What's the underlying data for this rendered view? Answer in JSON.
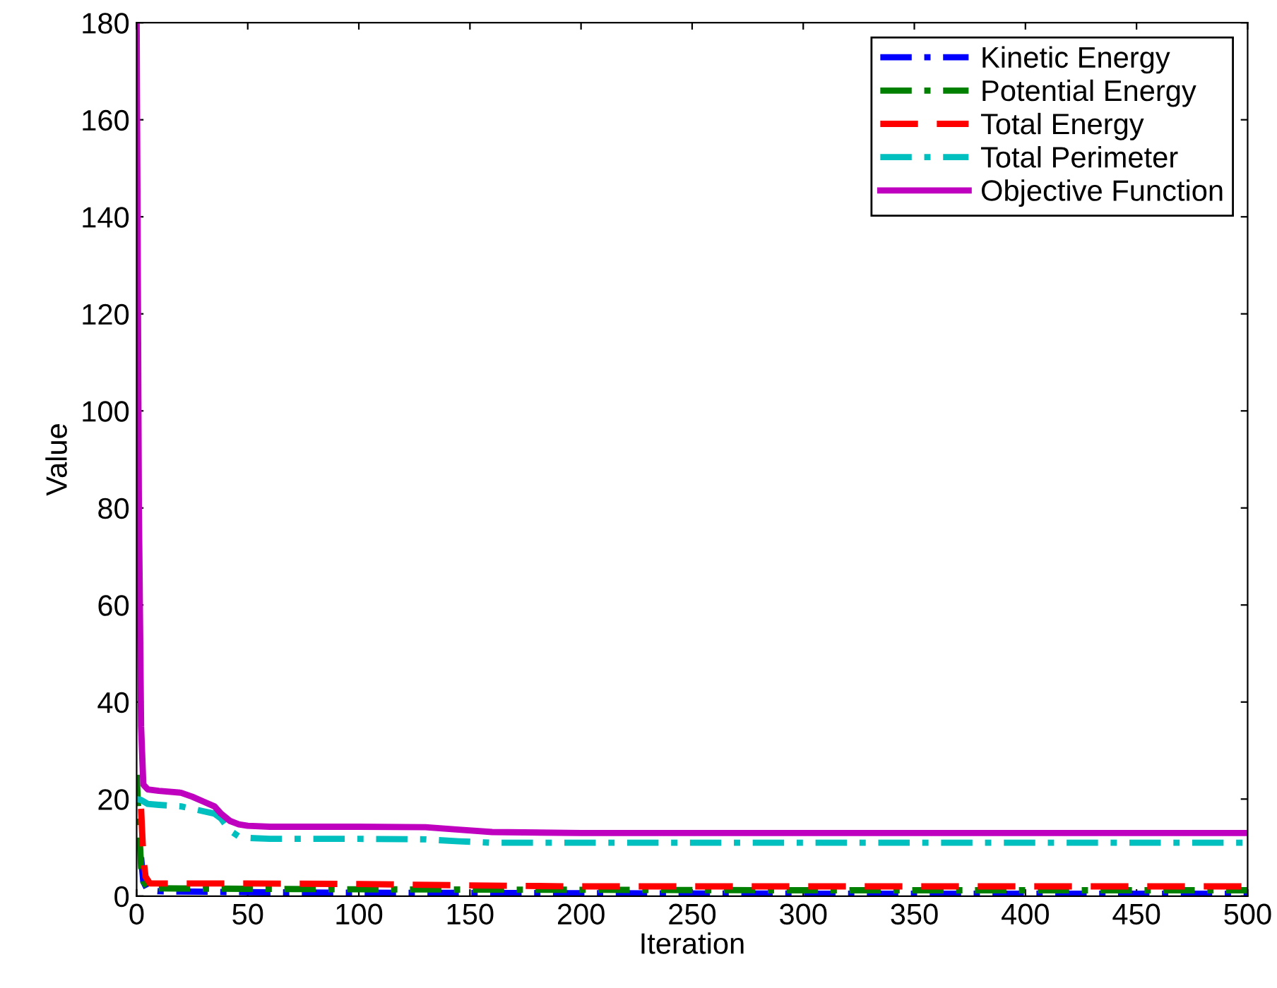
{
  "chart_data": {
    "type": "line",
    "xlabel": "Iteration",
    "ylabel": "Value",
    "xlim": [
      0,
      500
    ],
    "ylim": [
      0,
      180
    ],
    "xticks": [
      0,
      50,
      100,
      150,
      200,
      250,
      300,
      350,
      400,
      450,
      500
    ],
    "yticks": [
      0,
      20,
      40,
      60,
      80,
      100,
      120,
      140,
      160,
      180
    ],
    "legend": "top right",
    "grid": false,
    "marker": "none",
    "series": [
      {
        "name": "Kinetic Energy",
        "color": "#0000ff",
        "line_style": "dashdot",
        "x": [
          2,
          3,
          5,
          10,
          50,
          100,
          200,
          300,
          500
        ],
        "values": [
          8,
          3,
          1.2,
          1,
          0.8,
          0.7,
          0.6,
          0.5,
          0.5
        ]
      },
      {
        "name": "Potential Energy",
        "color": "#008000",
        "line_style": "dashdot",
        "x": [
          0,
          1,
          2,
          3,
          5,
          10,
          50,
          100,
          200,
          300,
          500
        ],
        "values": [
          25,
          15,
          6,
          3,
          1.8,
          1.6,
          1.5,
          1.4,
          1.3,
          1.2,
          1.2
        ]
      },
      {
        "name": "Total Energy",
        "color": "#ff0000",
        "line_style": "dashed",
        "x": [
          2,
          3,
          4,
          6,
          10,
          50,
          100,
          150,
          200,
          300,
          500
        ],
        "values": [
          18,
          8,
          4,
          2.6,
          2.6,
          2.6,
          2.5,
          2.2,
          2,
          2,
          2
        ]
      },
      {
        "name": "Total Perimeter",
        "color": "#00bfbf",
        "line_style": "dashdot",
        "x": [
          0,
          2,
          5,
          10,
          20,
          25,
          30,
          35,
          38,
          42,
          46,
          50,
          60,
          100,
          130,
          145,
          160,
          200,
          300,
          500
        ],
        "values": [
          20,
          19.8,
          19,
          18.8,
          18.5,
          18,
          17.5,
          17,
          16,
          13.5,
          12.3,
          12,
          11.8,
          11.8,
          11.7,
          11.3,
          11,
          11,
          11,
          11
        ]
      },
      {
        "name": "Objective Function",
        "color": "#bf00bf",
        "line_style": "solid",
        "x": [
          0,
          1,
          2,
          3,
          5,
          10,
          20,
          25,
          30,
          35,
          38,
          42,
          46,
          50,
          60,
          100,
          130,
          145,
          160,
          200,
          300,
          500
        ],
        "values": [
          180,
          80,
          35,
          23,
          22,
          21.7,
          21.3,
          20.5,
          19.5,
          18.5,
          17,
          15.5,
          14.8,
          14.5,
          14.3,
          14.3,
          14.2,
          13.7,
          13.2,
          13,
          13,
          13
        ]
      }
    ]
  }
}
